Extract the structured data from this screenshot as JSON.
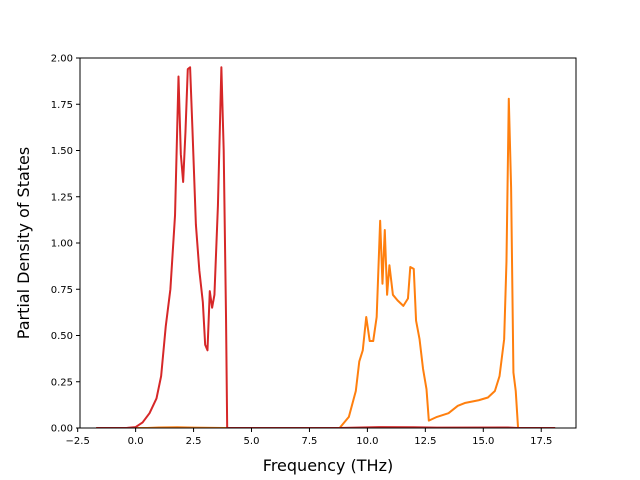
{
  "chart_data": {
    "type": "line",
    "title": "",
    "xlabel": "Frequency (THz)",
    "ylabel": "Partial Density of States",
    "xlim": [
      -2.4,
      19.0
    ],
    "ylim": [
      0.0,
      2.0
    ],
    "xticks": [
      -2.5,
      0.0,
      2.5,
      5.0,
      7.5,
      10.0,
      12.5,
      15.0,
      17.5
    ],
    "xtick_labels": [
      "−2.5",
      "0.0",
      "2.5",
      "5.0",
      "7.5",
      "10.0",
      "12.5",
      "15.0",
      "17.5"
    ],
    "yticks": [
      0.0,
      0.25,
      0.5,
      0.75,
      1.0,
      1.25,
      1.5,
      1.75,
      2.0
    ],
    "ytick_labels": [
      "0.00",
      "0.25",
      "0.50",
      "0.75",
      "1.00",
      "1.25",
      "1.50",
      "1.75",
      "2.00"
    ],
    "grid": false,
    "series": [
      {
        "color": "#ff7f0e",
        "points": [
          [
            -1.7,
            0.0
          ],
          [
            0.5,
            0.0
          ],
          [
            1.0,
            0.003
          ],
          [
            1.8,
            0.004
          ],
          [
            2.5,
            0.002
          ],
          [
            3.8,
            0.0
          ],
          [
            8.8,
            0.0
          ],
          [
            9.2,
            0.06
          ],
          [
            9.5,
            0.2
          ],
          [
            9.65,
            0.36
          ],
          [
            9.8,
            0.42
          ],
          [
            9.95,
            0.6
          ],
          [
            10.1,
            0.47
          ],
          [
            10.25,
            0.47
          ],
          [
            10.4,
            0.6
          ],
          [
            10.55,
            1.12
          ],
          [
            10.65,
            0.78
          ],
          [
            10.75,
            1.07
          ],
          [
            10.85,
            0.72
          ],
          [
            10.95,
            0.88
          ],
          [
            11.1,
            0.72
          ],
          [
            11.3,
            0.69
          ],
          [
            11.55,
            0.66
          ],
          [
            11.75,
            0.7
          ],
          [
            11.85,
            0.87
          ],
          [
            12.0,
            0.86
          ],
          [
            12.1,
            0.58
          ],
          [
            12.25,
            0.48
          ],
          [
            12.4,
            0.32
          ],
          [
            12.55,
            0.21
          ],
          [
            12.65,
            0.04
          ],
          [
            13.0,
            0.06
          ],
          [
            13.5,
            0.08
          ],
          [
            13.9,
            0.12
          ],
          [
            14.2,
            0.135
          ],
          [
            14.8,
            0.15
          ],
          [
            15.2,
            0.165
          ],
          [
            15.5,
            0.2
          ],
          [
            15.7,
            0.28
          ],
          [
            15.9,
            0.48
          ],
          [
            16.0,
            0.9
          ],
          [
            16.1,
            1.78
          ],
          [
            16.2,
            1.3
          ],
          [
            16.3,
            0.3
          ],
          [
            16.4,
            0.2
          ],
          [
            16.5,
            0.0
          ],
          [
            18.1,
            0.0
          ]
        ]
      },
      {
        "color": "#d62728",
        "points": [
          [
            -1.7,
            0.0
          ],
          [
            -0.4,
            0.0
          ],
          [
            0.0,
            0.005
          ],
          [
            0.3,
            0.03
          ],
          [
            0.6,
            0.08
          ],
          [
            0.9,
            0.16
          ],
          [
            1.1,
            0.28
          ],
          [
            1.3,
            0.55
          ],
          [
            1.5,
            0.75
          ],
          [
            1.7,
            1.15
          ],
          [
            1.85,
            1.9
          ],
          [
            1.95,
            1.48
          ],
          [
            2.05,
            1.33
          ],
          [
            2.15,
            1.6
          ],
          [
            2.25,
            1.94
          ],
          [
            2.35,
            1.95
          ],
          [
            2.45,
            1.62
          ],
          [
            2.6,
            1.1
          ],
          [
            2.75,
            0.85
          ],
          [
            2.9,
            0.68
          ],
          [
            3.0,
            0.45
          ],
          [
            3.1,
            0.42
          ],
          [
            3.2,
            0.74
          ],
          [
            3.3,
            0.65
          ],
          [
            3.4,
            0.72
          ],
          [
            3.55,
            1.2
          ],
          [
            3.7,
            1.95
          ],
          [
            3.8,
            1.5
          ],
          [
            3.9,
            0.6
          ],
          [
            3.95,
            0.0
          ],
          [
            8.8,
            0.0
          ],
          [
            9.5,
            0.002
          ],
          [
            10.5,
            0.005
          ],
          [
            12.0,
            0.004
          ],
          [
            13.0,
            0.002
          ],
          [
            16.0,
            0.003
          ],
          [
            16.5,
            0.0
          ],
          [
            18.1,
            0.0
          ]
        ]
      }
    ]
  }
}
